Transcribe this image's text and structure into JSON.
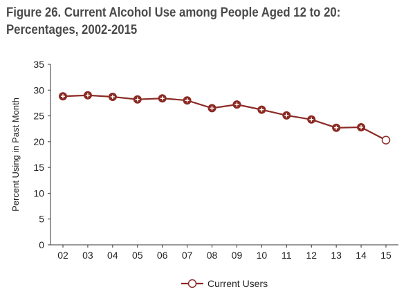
{
  "figure": {
    "title_line1": "Figure 26. Current Alcohol Use among People Aged 12 to 20:",
    "title_line2": "Percentages, 2002-2015"
  },
  "chart_data": {
    "type": "line",
    "title": "Figure 26. Current Alcohol Use among People Aged 12 to 20: Percentages, 2002-2015",
    "xlabel": "",
    "ylabel": "Percent Using in Past Month",
    "categories": [
      "02",
      "03",
      "04",
      "05",
      "06",
      "07",
      "08",
      "09",
      "10",
      "11",
      "12",
      "13",
      "14",
      "15"
    ],
    "ylim": [
      0,
      35
    ],
    "yticks": [
      0,
      5,
      10,
      15,
      20,
      25,
      30,
      35
    ],
    "series": [
      {
        "name": "Current Users",
        "color": "#8b2a24",
        "values": [
          28.8,
          29.0,
          28.7,
          28.2,
          28.4,
          28.0,
          26.5,
          27.2,
          26.2,
          25.1,
          24.3,
          22.7,
          22.8,
          20.3
        ]
      }
    ],
    "legend": {
      "position": "bottom-center"
    },
    "grid": false
  }
}
